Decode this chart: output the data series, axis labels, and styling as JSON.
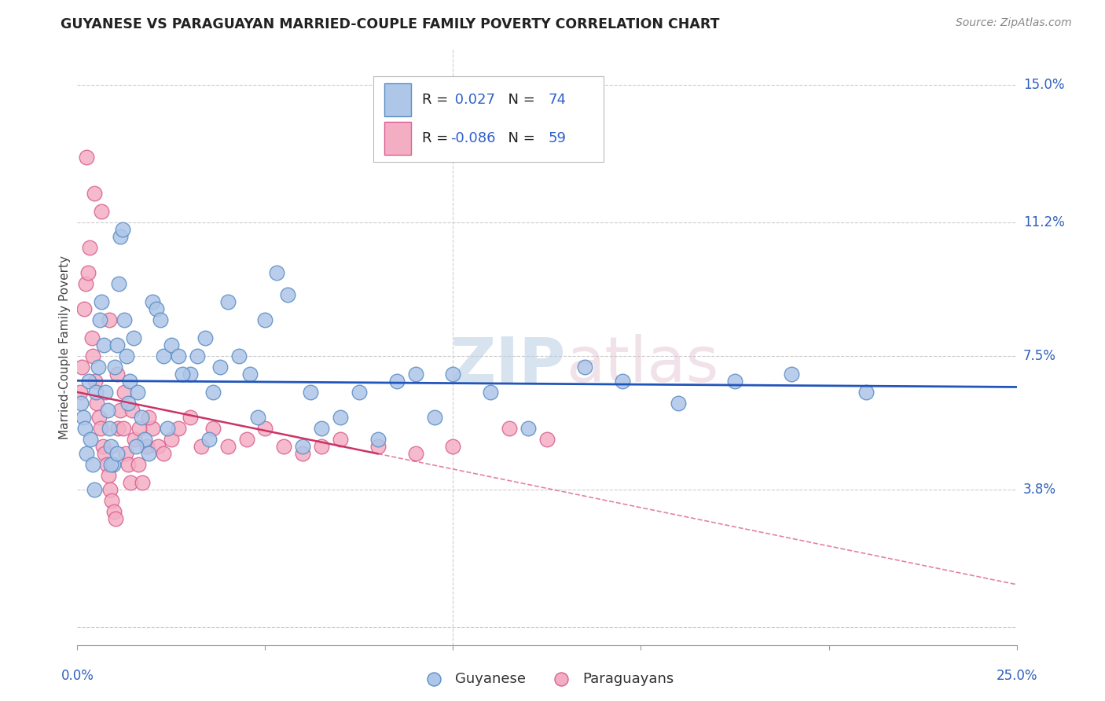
{
  "title": "GUYANESE VS PARAGUAYAN MARRIED-COUPLE FAMILY POVERTY CORRELATION CHART",
  "source": "Source: ZipAtlas.com",
  "ylabel": "Married-Couple Family Poverty",
  "yticks": [
    0.0,
    3.8,
    7.5,
    11.2,
    15.0
  ],
  "ytick_labels": [
    "",
    "3.8%",
    "7.5%",
    "11.2%",
    "15.0%"
  ],
  "xlim": [
    0.0,
    25.0
  ],
  "ylim": [
    -0.5,
    16.0
  ],
  "guyanese_color": "#aec6e8",
  "paraguayan_color": "#f4aec3",
  "guyanese_edge": "#5b8ec4",
  "paraguayan_edge": "#d96090",
  "guyanese_line_color": "#2255bb",
  "paraguayan_line_color": "#cc3366",
  "paraguayan_line_solid_color": "#cc3366",
  "guyanese_R": 0.027,
  "guyanese_N": 74,
  "paraguayan_R": -0.086,
  "paraguayan_N": 59,
  "guyanese_x": [
    0.1,
    0.15,
    0.2,
    0.25,
    0.3,
    0.35,
    0.4,
    0.45,
    0.5,
    0.55,
    0.6,
    0.65,
    0.7,
    0.75,
    0.8,
    0.85,
    0.9,
    0.95,
    1.0,
    1.05,
    1.1,
    1.15,
    1.2,
    1.25,
    1.3,
    1.4,
    1.5,
    1.6,
    1.7,
    1.8,
    1.9,
    2.0,
    2.1,
    2.2,
    2.3,
    2.5,
    2.7,
    3.0,
    3.2,
    3.4,
    3.6,
    3.8,
    4.0,
    4.3,
    4.6,
    5.0,
    5.3,
    5.6,
    6.0,
    6.5,
    7.0,
    7.5,
    8.0,
    8.5,
    9.0,
    9.5,
    10.0,
    11.0,
    12.0,
    13.5,
    14.5,
    16.0,
    17.5,
    19.0,
    21.0,
    2.8,
    1.35,
    0.9,
    1.05,
    1.55,
    2.4,
    3.5,
    4.8,
    6.2
  ],
  "guyanese_y": [
    6.2,
    5.8,
    5.5,
    4.8,
    6.8,
    5.2,
    4.5,
    3.8,
    6.5,
    7.2,
    8.5,
    9.0,
    7.8,
    6.5,
    6.0,
    5.5,
    5.0,
    4.5,
    7.2,
    7.8,
    9.5,
    10.8,
    11.0,
    8.5,
    7.5,
    6.8,
    8.0,
    6.5,
    5.8,
    5.2,
    4.8,
    9.0,
    8.8,
    8.5,
    7.5,
    7.8,
    7.5,
    7.0,
    7.5,
    8.0,
    6.5,
    7.2,
    9.0,
    7.5,
    7.0,
    8.5,
    9.8,
    9.2,
    5.0,
    5.5,
    5.8,
    6.5,
    5.2,
    6.8,
    7.0,
    5.8,
    7.0,
    6.5,
    5.5,
    7.2,
    6.8,
    6.2,
    6.8,
    7.0,
    6.5,
    7.0,
    6.2,
    4.5,
    4.8,
    5.0,
    5.5,
    5.2,
    5.8,
    6.5
  ],
  "paraguayan_x": [
    0.08,
    0.12,
    0.18,
    0.22,
    0.28,
    0.32,
    0.38,
    0.42,
    0.48,
    0.52,
    0.58,
    0.62,
    0.68,
    0.72,
    0.78,
    0.82,
    0.88,
    0.92,
    0.98,
    1.02,
    1.08,
    1.15,
    1.22,
    1.28,
    1.35,
    1.42,
    1.52,
    1.62,
    1.72,
    1.85,
    2.0,
    2.15,
    2.3,
    2.5,
    2.7,
    3.0,
    3.3,
    3.6,
    4.0,
    4.5,
    5.0,
    5.5,
    6.0,
    6.5,
    7.0,
    8.0,
    9.0,
    10.0,
    11.5,
    12.5,
    0.25,
    0.45,
    0.65,
    0.85,
    1.05,
    1.25,
    1.45,
    1.65,
    1.9
  ],
  "paraguayan_y": [
    6.5,
    7.2,
    8.8,
    9.5,
    9.8,
    10.5,
    8.0,
    7.5,
    6.8,
    6.2,
    5.8,
    5.5,
    5.0,
    4.8,
    4.5,
    4.2,
    3.8,
    3.5,
    3.2,
    3.0,
    5.5,
    6.0,
    5.5,
    4.8,
    4.5,
    4.0,
    5.2,
    4.5,
    4.0,
    5.0,
    5.5,
    5.0,
    4.8,
    5.2,
    5.5,
    5.8,
    5.0,
    5.5,
    5.0,
    5.2,
    5.5,
    5.0,
    4.8,
    5.0,
    5.2,
    5.0,
    4.8,
    5.0,
    5.5,
    5.2,
    13.0,
    12.0,
    11.5,
    8.5,
    7.0,
    6.5,
    6.0,
    5.5,
    5.8
  ]
}
